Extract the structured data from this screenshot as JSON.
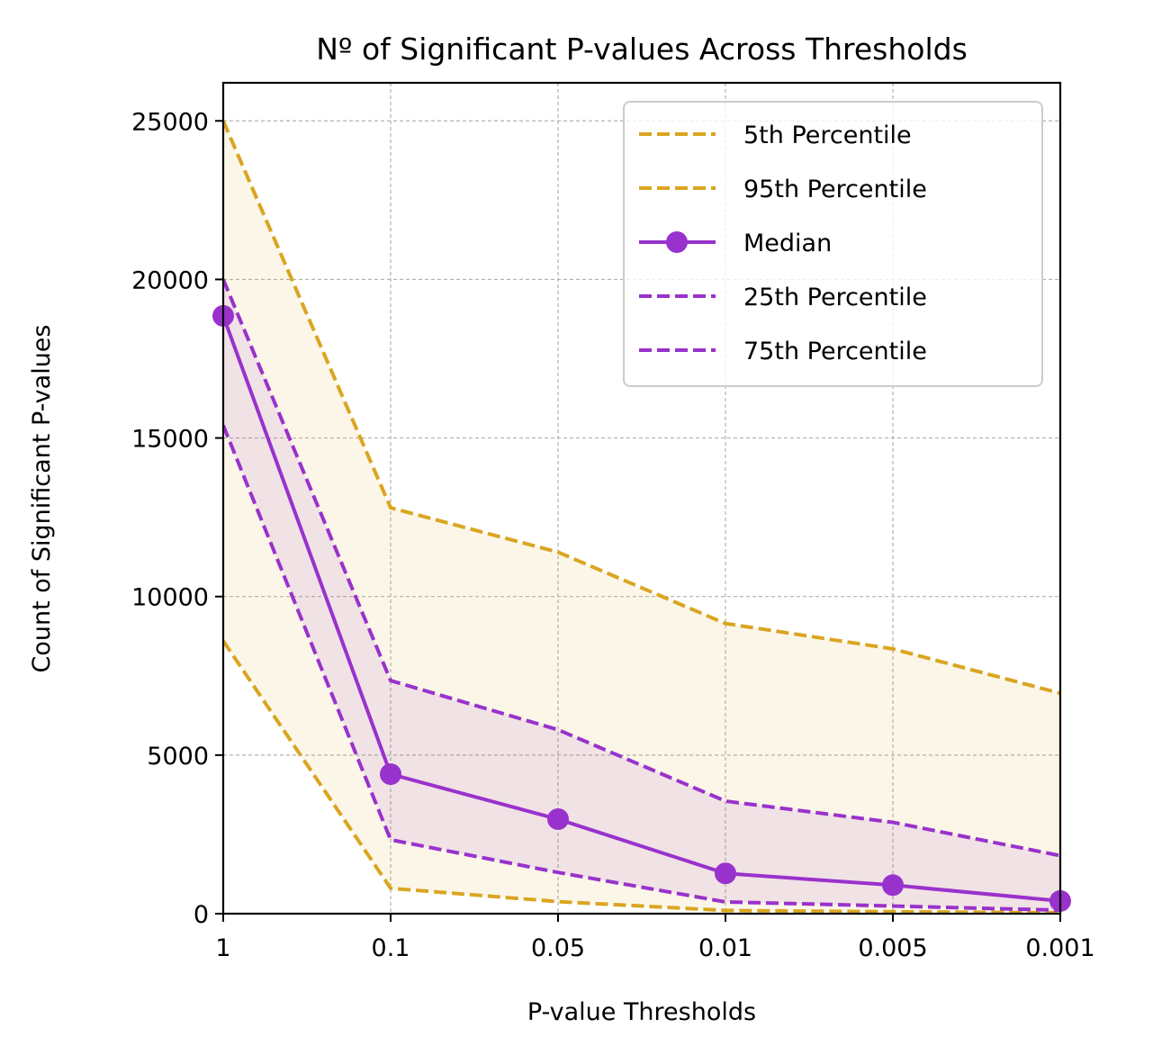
{
  "chart_data": {
    "type": "line",
    "title": "Nº of Significant P-values Across Thresholds",
    "xlabel": "P-value Thresholds",
    "ylabel": "Count of Significant P-values",
    "categories": [
      "1",
      "0.1",
      "0.05",
      "0.01",
      "0.005",
      "0.001"
    ],
    "ylim": [
      0,
      26200
    ],
    "yticks": [
      0,
      5000,
      10000,
      15000,
      20000,
      25000
    ],
    "ytick_labels": [
      "0",
      "5000",
      "10000",
      "15000",
      "20000",
      "25000"
    ],
    "grid": true,
    "legend_position": "top-right",
    "series": [
      {
        "name": "5th Percentile",
        "values": [
          8600,
          800,
          380,
          100,
          60,
          30
        ],
        "color": "#DAA520",
        "style": "dashed"
      },
      {
        "name": "95th Percentile",
        "values": [
          25000,
          12800,
          11400,
          9150,
          8350,
          6950
        ],
        "color": "#DAA520",
        "style": "dashed"
      },
      {
        "name": "Median",
        "values": [
          18850,
          4400,
          2980,
          1270,
          900,
          400
        ],
        "color": "#9932CC",
        "style": "solid",
        "marker": "circle"
      },
      {
        "name": "25th Percentile",
        "values": [
          15400,
          2330,
          1300,
          370,
          240,
          110
        ],
        "color": "#9932CC",
        "style": "dashed"
      },
      {
        "name": "75th Percentile",
        "values": [
          20000,
          7350,
          5800,
          3550,
          2880,
          1830
        ],
        "color": "#9932CC",
        "style": "dashed"
      }
    ],
    "bands": [
      {
        "between": [
          "5th Percentile",
          "95th Percentile"
        ],
        "color": "#DAA520",
        "opacity": 0.1
      },
      {
        "between": [
          "25th Percentile",
          "75th Percentile"
        ],
        "color": "#9932CC",
        "opacity": 0.1
      }
    ]
  }
}
